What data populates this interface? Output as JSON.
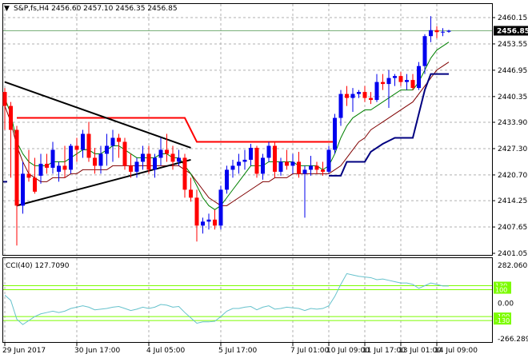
{
  "header": {
    "symbol_line": "S&P,fs,H4  2456.60 2457.10 2456.35 2456.85"
  },
  "indicator": {
    "label": "CCI(40) 127.7090",
    "scale_labels": [
      "282.0603",
      "130",
      "100",
      "0.00",
      "-100",
      "-130",
      "-266.2892"
    ]
  },
  "price_axis": {
    "tick_labels": [
      "2460.15",
      "2453.55",
      "2446.95",
      "2440.35",
      "2433.90",
      "2427.30",
      "2420.70",
      "2414.25",
      "2407.65",
      "2401.05"
    ],
    "current_price": "2456.85"
  },
  "time_axis": {
    "labels": [
      "29 Jun 2017",
      "30 Jun 17:00",
      "4 Jul 05:00",
      "5 Jul 17:00",
      "7 Jul 01:00",
      "10 Jul 09:00",
      "11 Jul 17:00",
      "13 Jul 01:00",
      "14 Jul 09:00"
    ]
  },
  "colors": {
    "bull": "#0000ee",
    "bear": "#ff0000",
    "fast_ma": "#008000",
    "slow_ma": "#800000",
    "stop_line": "#000080",
    "resistance": "#ff0000",
    "trendline": "#000000",
    "cci": "#66c2cc",
    "cci_levels": "#7cfc00"
  },
  "chart_data": {
    "type": "candlestick",
    "ylim": [
      2401.05,
      2460.15
    ],
    "candles": [
      {
        "o": 2441.5,
        "h": 2442.5,
        "l": 2432.0,
        "c": 2438.0
      },
      {
        "o": 2438.0,
        "h": 2439.0,
        "l": 2420.0,
        "c": 2432.0
      },
      {
        "o": 2432.0,
        "h": 2433.0,
        "l": 2403.0,
        "c": 2413.0
      },
      {
        "o": 2413.0,
        "h": 2424.0,
        "l": 2411.0,
        "c": 2421.0
      },
      {
        "o": 2421.0,
        "h": 2427.0,
        "l": 2419.0,
        "c": 2420.0
      },
      {
        "o": 2420.0,
        "h": 2425.0,
        "l": 2416.0,
        "c": 2416.5
      },
      {
        "o": 2420.5,
        "h": 2426.0,
        "l": 2418.5,
        "c": 2423.5
      },
      {
        "o": 2423.5,
        "h": 2426.0,
        "l": 2421.0,
        "c": 2422.5
      },
      {
        "o": 2422.5,
        "h": 2429.0,
        "l": 2421.0,
        "c": 2427.0
      },
      {
        "o": 2421.5,
        "h": 2424.0,
        "l": 2419.0,
        "c": 2423.0
      },
      {
        "o": 2423.0,
        "h": 2428.0,
        "l": 2420.0,
        "c": 2422.0
      },
      {
        "o": 2422.0,
        "h": 2428.5,
        "l": 2421.0,
        "c": 2428.0
      },
      {
        "o": 2428.0,
        "h": 2430.0,
        "l": 2424.0,
        "c": 2427.0
      },
      {
        "o": 2427.0,
        "h": 2432.0,
        "l": 2425.0,
        "c": 2431.0
      },
      {
        "o": 2431.0,
        "h": 2434.0,
        "l": 2424.0,
        "c": 2425.0
      },
      {
        "o": 2425.0,
        "h": 2427.5,
        "l": 2421.0,
        "c": 2423.0
      },
      {
        "o": 2423.0,
        "h": 2428.0,
        "l": 2421.0,
        "c": 2426.0
      },
      {
        "o": 2426.0,
        "h": 2431.0,
        "l": 2423.0,
        "c": 2428.0
      },
      {
        "o": 2428.0,
        "h": 2432.0,
        "l": 2424.0,
        "c": 2430.0
      },
      {
        "o": 2430.0,
        "h": 2431.0,
        "l": 2425.0,
        "c": 2429.0
      },
      {
        "o": 2429.0,
        "h": 2430.0,
        "l": 2422.0,
        "c": 2423.0
      },
      {
        "o": 2423.0,
        "h": 2426.0,
        "l": 2420.0,
        "c": 2421.5
      },
      {
        "o": 2421.5,
        "h": 2425.0,
        "l": 2420.0,
        "c": 2424.0
      },
      {
        "o": 2424.0,
        "h": 2428.0,
        "l": 2422.0,
        "c": 2426.0
      },
      {
        "o": 2426.0,
        "h": 2428.0,
        "l": 2421.0,
        "c": 2422.0
      },
      {
        "o": 2422.0,
        "h": 2426.0,
        "l": 2420.0,
        "c": 2425.0
      },
      {
        "o": 2425.0,
        "h": 2430.0,
        "l": 2423.0,
        "c": 2427.0
      },
      {
        "o": 2427.0,
        "h": 2431.0,
        "l": 2424.0,
        "c": 2426.0
      },
      {
        "o": 2426.0,
        "h": 2428.0,
        "l": 2422.0,
        "c": 2424.0
      },
      {
        "o": 2424.0,
        "h": 2427.0,
        "l": 2423.0,
        "c": 2425.0
      },
      {
        "o": 2425.0,
        "h": 2426.0,
        "l": 2415.0,
        "c": 2417.0
      },
      {
        "o": 2417.0,
        "h": 2420.0,
        "l": 2414.0,
        "c": 2415.0
      },
      {
        "o": 2415.0,
        "h": 2417.0,
        "l": 2404.0,
        "c": 2408.0
      },
      {
        "o": 2408.0,
        "h": 2410.0,
        "l": 2406.0,
        "c": 2409.0
      },
      {
        "o": 2409.0,
        "h": 2411.0,
        "l": 2407.0,
        "c": 2409.5
      },
      {
        "o": 2409.5,
        "h": 2412.0,
        "l": 2407.0,
        "c": 2408.0
      },
      {
        "o": 2408.0,
        "h": 2418.0,
        "l": 2407.0,
        "c": 2417.0
      },
      {
        "o": 2417.0,
        "h": 2423.0,
        "l": 2416.0,
        "c": 2422.0
      },
      {
        "o": 2422.0,
        "h": 2424.5,
        "l": 2420.0,
        "c": 2423.0
      },
      {
        "o": 2423.0,
        "h": 2426.0,
        "l": 2421.0,
        "c": 2424.0
      },
      {
        "o": 2424.0,
        "h": 2427.0,
        "l": 2422.0,
        "c": 2424.5
      },
      {
        "o": 2424.5,
        "h": 2428.5,
        "l": 2423.0,
        "c": 2427.5
      },
      {
        "o": 2427.5,
        "h": 2428.0,
        "l": 2420.0,
        "c": 2421.0
      },
      {
        "o": 2421.0,
        "h": 2426.0,
        "l": 2419.5,
        "c": 2425.0
      },
      {
        "o": 2425.0,
        "h": 2429.0,
        "l": 2424.0,
        "c": 2428.0
      },
      {
        "o": 2428.0,
        "h": 2429.0,
        "l": 2420.0,
        "c": 2421.5
      },
      {
        "o": 2421.5,
        "h": 2425.0,
        "l": 2420.5,
        "c": 2424.0
      },
      {
        "o": 2424.0,
        "h": 2427.0,
        "l": 2422.0,
        "c": 2423.0
      },
      {
        "o": 2423.0,
        "h": 2426.0,
        "l": 2421.0,
        "c": 2424.0
      },
      {
        "o": 2424.0,
        "h": 2426.5,
        "l": 2420.0,
        "c": 2421.0
      },
      {
        "o": 2421.0,
        "h": 2423.0,
        "l": 2410.0,
        "c": 2422.0
      },
      {
        "o": 2422.0,
        "h": 2425.5,
        "l": 2420.5,
        "c": 2423.0
      },
      {
        "o": 2423.0,
        "h": 2424.0,
        "l": 2421.0,
        "c": 2422.0
      },
      {
        "o": 2422.0,
        "h": 2424.0,
        "l": 2420.5,
        "c": 2421.5
      },
      {
        "o": 2421.5,
        "h": 2428.0,
        "l": 2421.0,
        "c": 2427.0
      },
      {
        "o": 2427.0,
        "h": 2436.0,
        "l": 2426.0,
        "c": 2435.0
      },
      {
        "o": 2435.0,
        "h": 2442.0,
        "l": 2433.0,
        "c": 2441.0
      },
      {
        "o": 2441.0,
        "h": 2443.0,
        "l": 2438.0,
        "c": 2440.0
      },
      {
        "o": 2440.0,
        "h": 2442.5,
        "l": 2436.5,
        "c": 2441.0
      },
      {
        "o": 2441.0,
        "h": 2442.0,
        "l": 2440.0,
        "c": 2441.5
      },
      {
        "o": 2441.5,
        "h": 2443.0,
        "l": 2439.0,
        "c": 2440.0
      },
      {
        "o": 2440.0,
        "h": 2441.5,
        "l": 2438.5,
        "c": 2439.5
      },
      {
        "o": 2439.5,
        "h": 2446.0,
        "l": 2439.0,
        "c": 2444.0
      },
      {
        "o": 2444.0,
        "h": 2446.0,
        "l": 2442.0,
        "c": 2443.5
      },
      {
        "o": 2443.5,
        "h": 2447.0,
        "l": 2437.5,
        "c": 2445.0
      },
      {
        "o": 2445.0,
        "h": 2446.0,
        "l": 2443.0,
        "c": 2445.5
      },
      {
        "o": 2445.5,
        "h": 2446.5,
        "l": 2443.0,
        "c": 2444.0
      },
      {
        "o": 2444.0,
        "h": 2446.0,
        "l": 2442.0,
        "c": 2444.5
      },
      {
        "o": 2444.5,
        "h": 2446.0,
        "l": 2442.0,
        "c": 2442.5
      },
      {
        "o": 2442.5,
        "h": 2449.0,
        "l": 2442.0,
        "c": 2448.0
      },
      {
        "o": 2448.0,
        "h": 2456.0,
        "l": 2446.0,
        "c": 2455.5
      },
      {
        "o": 2455.5,
        "h": 2460.5,
        "l": 2454.0,
        "c": 2457.0
      },
      {
        "o": 2457.0,
        "h": 2458.0,
        "l": 2455.0,
        "c": 2456.5
      },
      {
        "o": 2456.5,
        "h": 2457.5,
        "l": 2455.5,
        "c": 2456.6
      },
      {
        "o": 2456.6,
        "h": 2457.1,
        "l": 2456.35,
        "c": 2456.85
      }
    ],
    "fast_ma": [
      2440,
      2436,
      2429,
      2426,
      2424,
      2423,
      2423,
      2423,
      2424,
      2424,
      2424,
      2425,
      2426,
      2427,
      2427,
      2426,
      2426,
      2427,
      2428,
      2428,
      2427,
      2426,
      2425,
      2425,
      2425,
      2425,
      2426,
      2426,
      2425,
      2425,
      2423,
      2421,
      2418,
      2415,
      2413,
      2412,
      2413,
      2415,
      2417,
      2419,
      2421,
      2423,
      2423,
      2423,
      2424,
      2424,
      2424,
      2424,
      2424,
      2423,
      2423,
      2423,
      2423,
      2422,
      2423,
      2426,
      2430,
      2433,
      2435,
      2436,
      2437,
      2437,
      2438,
      2439,
      2440,
      2441,
      2442,
      2442,
      2442,
      2444,
      2447,
      2450,
      2452,
      2453,
      2454
    ],
    "slow_ma": [
      2438,
      2434,
      2428,
      2424,
      2421,
      2420,
      2419,
      2419,
      2420,
      2420,
      2420,
      2421,
      2421,
      2422,
      2422,
      2422,
      2422,
      2422,
      2423,
      2423,
      2423,
      2423,
      2423,
      2423,
      2423,
      2423,
      2423,
      2423,
      2423,
      2423,
      2422,
      2421,
      2419,
      2417,
      2415,
      2414,
      2413,
      2413,
      2414,
      2415,
      2416,
      2417,
      2418,
      2419,
      2419,
      2420,
      2420,
      2420,
      2421,
      2421,
      2421,
      2421,
      2421,
      2421,
      2421,
      2422,
      2423,
      2425,
      2427,
      2429,
      2430,
      2432,
      2433,
      2434,
      2435,
      2436,
      2437,
      2438,
      2439,
      2441,
      2443,
      2445,
      2447,
      2448,
      2449
    ],
    "stop_line": [
      {
        "i": 54,
        "v": 2420.5
      },
      {
        "i": 56,
        "v": 2420.5
      },
      {
        "i": 57,
        "v": 2424.0
      },
      {
        "i": 60,
        "v": 2424.0
      },
      {
        "i": 61,
        "v": 2426.5
      },
      {
        "i": 63,
        "v": 2428.5
      },
      {
        "i": 65,
        "v": 2430.0
      },
      {
        "i": 68,
        "v": 2430.0
      },
      {
        "i": 70,
        "v": 2442.0
      },
      {
        "i": 71,
        "v": 2446.0
      },
      {
        "i": 74,
        "v": 2446.0
      }
    ],
    "resistance_line": [
      {
        "i": 2,
        "v": 2435.0
      },
      {
        "i": 30,
        "v": 2435.0
      },
      {
        "i": 32,
        "v": 2429.0
      },
      {
        "i": 55,
        "v": 2429.0
      }
    ],
    "triangle": {
      "upper": [
        {
          "i": 0,
          "v": 2444.0
        },
        {
          "i": 31,
          "v": 2427.5
        }
      ],
      "lower": [
        {
          "i": 2,
          "v": 2413.0
        },
        {
          "i": 31,
          "v": 2424.5
        }
      ]
    },
    "cci_ylim": [
      -266.2892,
      282.0603
    ],
    "cci_levels": [
      130,
      100,
      -100,
      -130
    ],
    "cci": [
      60,
      20,
      -120,
      -160,
      -130,
      -100,
      -80,
      -70,
      -60,
      -70,
      -60,
      -40,
      -30,
      -20,
      -30,
      -50,
      -45,
      -40,
      -30,
      -25,
      -40,
      -55,
      -45,
      -30,
      -40,
      -30,
      -10,
      -15,
      -30,
      -25,
      -70,
      -110,
      -150,
      -140,
      -140,
      -135,
      -100,
      -60,
      -40,
      -40,
      -30,
      -25,
      -50,
      -30,
      -20,
      -45,
      -40,
      -30,
      -35,
      -40,
      -55,
      -40,
      -45,
      -40,
      -20,
      50,
      140,
      220,
      210,
      200,
      195,
      190,
      175,
      180,
      170,
      160,
      150,
      150,
      140,
      110,
      130,
      150,
      140,
      128,
      127.709
    ],
    "time_labels": [
      "29 Jun 2017",
      "30 Jun 17:00",
      "4 Jul 05:00",
      "5 Jul 17:00",
      "7 Jul 01:00",
      "10 Jul 09:00",
      "11 Jul 17:00",
      "13 Jul 01:00",
      "14 Jul 09:00"
    ],
    "time_label_candles": [
      0,
      12,
      24,
      36,
      48,
      54,
      60,
      66,
      72
    ]
  }
}
